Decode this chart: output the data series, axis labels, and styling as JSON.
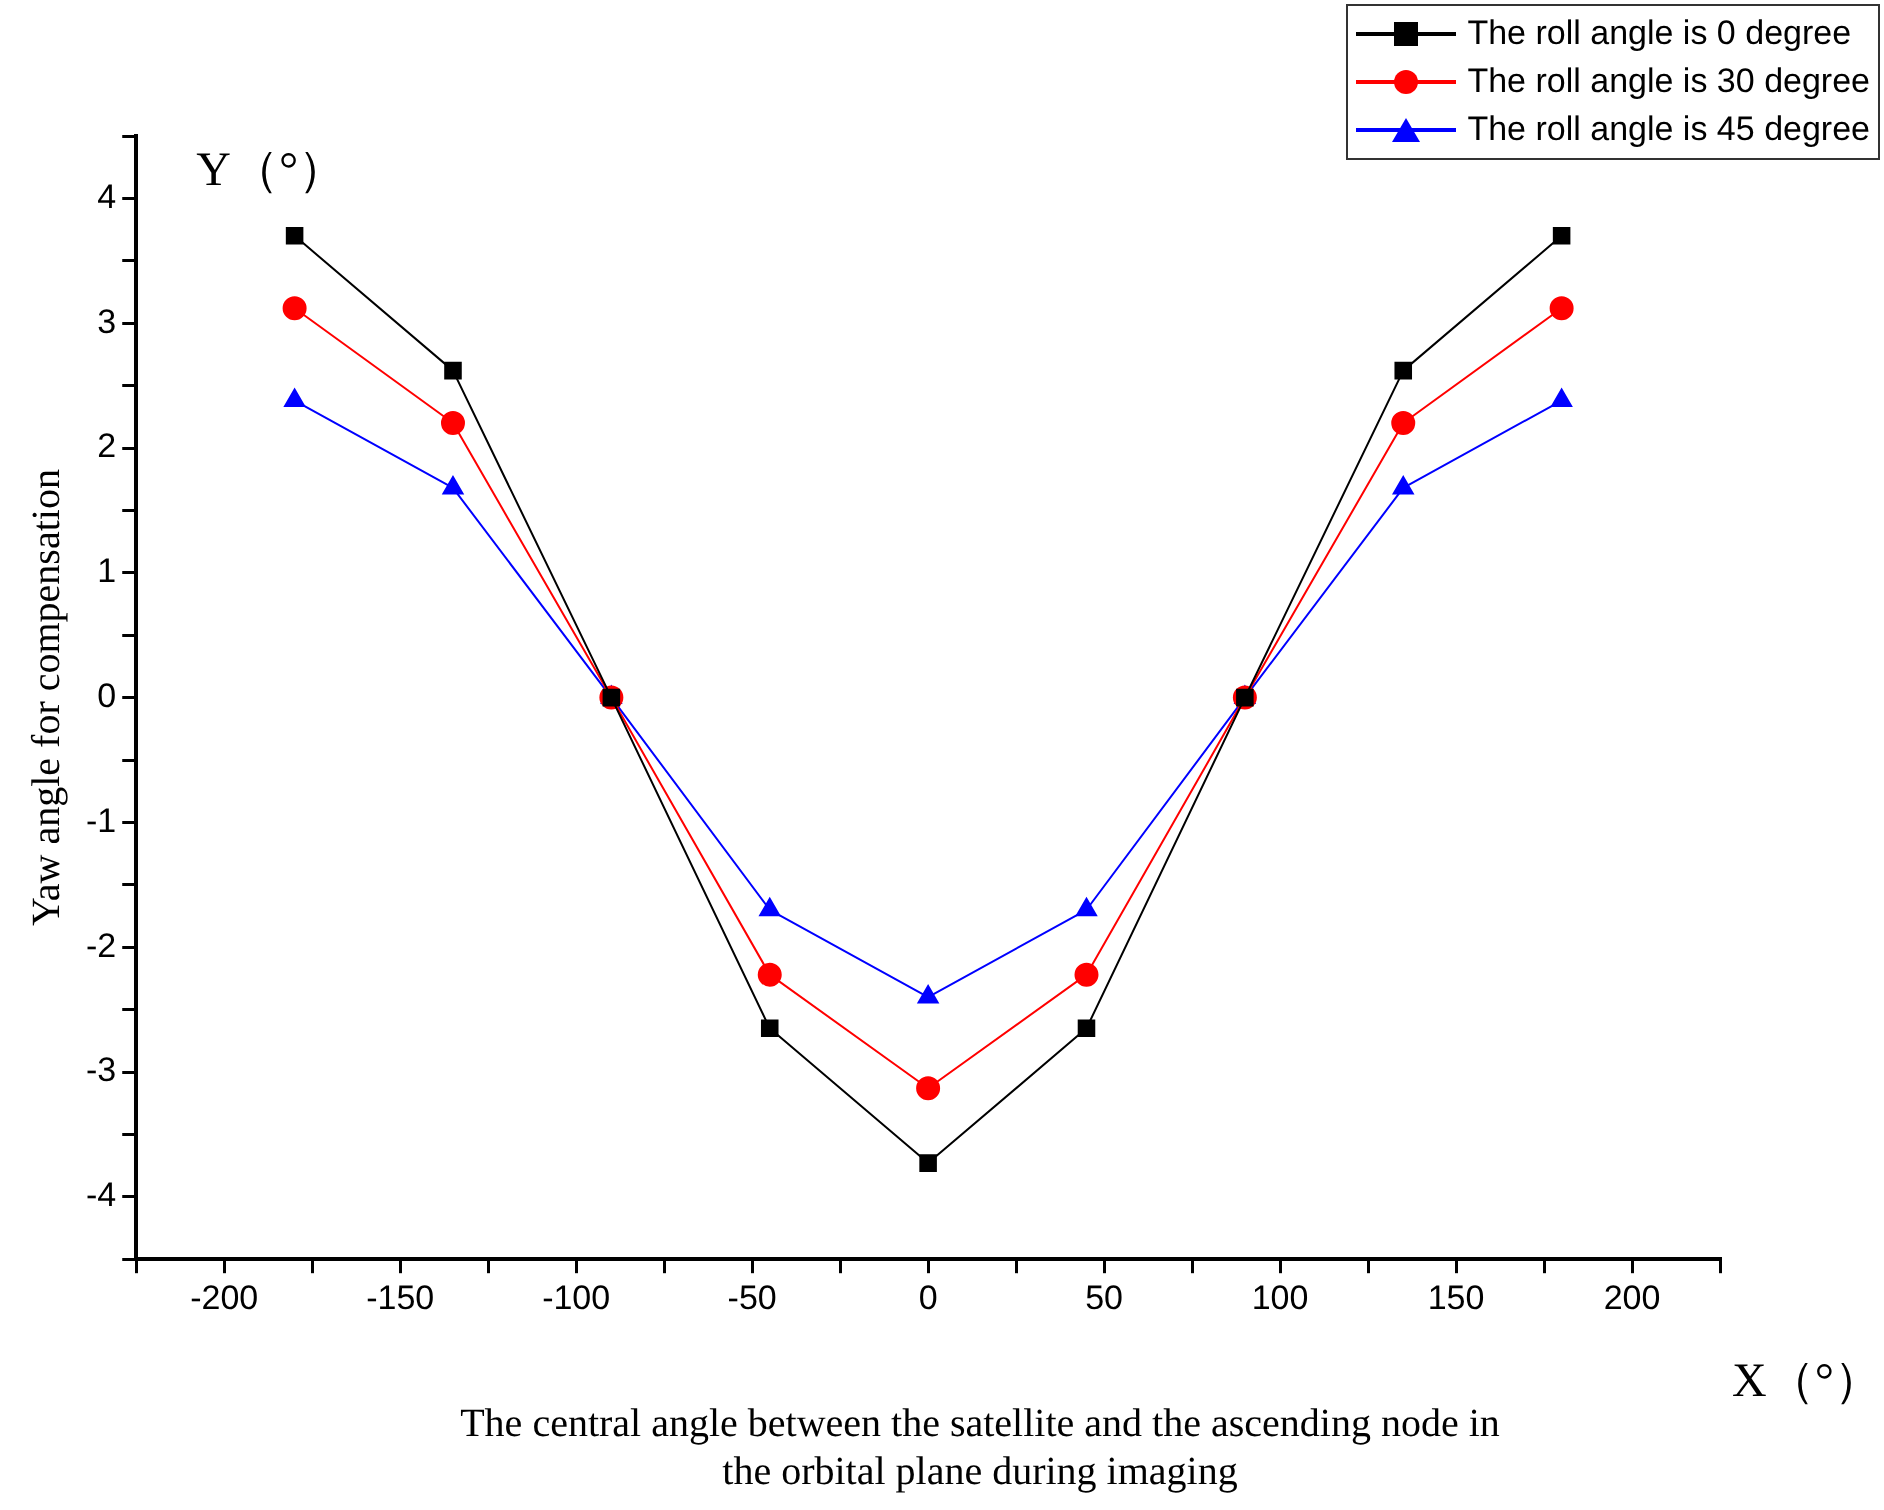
{
  "chart_data": {
    "type": "line",
    "xlabel": "The central angle between the satellite and the ascending node in the orbital plane during imaging",
    "ylabel": "Yaw angle for compensation",
    "annotations": [
      "Y（°）",
      "X（°）"
    ],
    "x": [
      -180,
      -135,
      -90,
      -45,
      0,
      45,
      90,
      135,
      180
    ],
    "xlim": [
      -225,
      225
    ],
    "xticks": [
      {
        "value": -225,
        "label": null
      },
      -200,
      {
        "value": -175,
        "label": null
      },
      -150,
      {
        "value": -125,
        "label": null
      },
      -100,
      {
        "value": -75,
        "label": null
      },
      -50,
      {
        "value": -25,
        "label": null
      },
      0,
      {
        "value": 25,
        "label": null
      },
      50,
      {
        "value": 75,
        "label": null
      },
      100,
      {
        "value": 125,
        "label": null
      },
      150,
      {
        "value": 175,
        "label": null
      },
      200,
      {
        "value": 225,
        "label": null
      }
    ],
    "ylim": [
      -4.5,
      4.5
    ],
    "yticks": [
      {
        "value": -4.5,
        "label": null
      },
      -4,
      {
        "value": -3.5,
        "label": null
      },
      -3,
      {
        "value": -2.5,
        "label": null
      },
      -2,
      {
        "value": -1.5,
        "label": null
      },
      -1,
      {
        "value": -0.5,
        "label": null
      },
      0,
      {
        "value": 0.5,
        "label": null
      },
      1,
      {
        "value": 1.5,
        "label": null
      },
      2,
      {
        "value": 2.5,
        "label": null
      },
      3,
      {
        "value": 3.5,
        "label": null
      },
      4,
      {
        "value": 4.5,
        "label": null
      }
    ],
    "grid": false,
    "legend": "top right",
    "line_style": "solid",
    "series": [
      {
        "name": "The roll angle is 0 degree",
        "color": "#000000",
        "marker": "square",
        "values": [
          3.7,
          2.62,
          0,
          -2.65,
          -3.73,
          -2.65,
          0,
          2.62,
          3.7
        ]
      },
      {
        "name": "The roll angle is 30 degree",
        "color": "#ff0000",
        "marker": "circle",
        "values": [
          3.12,
          2.2,
          0,
          -2.22,
          -3.13,
          -2.22,
          0,
          2.2,
          3.12
        ]
      },
      {
        "name": "The roll angle is 45 degree",
        "color": "#0000ff",
        "marker": "triangle",
        "values": [
          2.38,
          1.68,
          0,
          -1.7,
          -2.4,
          -1.7,
          0,
          1.68,
          2.38
        ]
      }
    ]
  }
}
